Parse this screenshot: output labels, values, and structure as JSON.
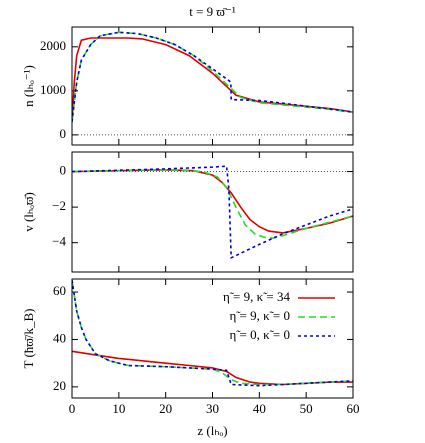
{
  "chart_data": [
    {
      "type": "line",
      "title": "t = 9 ϖ̄⁻¹",
      "ylabel": "n  (lₕₒ⁻¹)",
      "ylim": [
        -230,
        2450
      ],
      "yticks": [
        0,
        1000,
        2000
      ],
      "zero_line": true,
      "series": [
        {
          "color": "#e00000",
          "x": [
            0,
            0.5,
            1,
            2,
            4,
            8,
            12,
            15,
            20,
            25,
            30,
            33,
            35,
            40,
            45,
            50,
            55,
            60
          ],
          "values": [
            300,
            1200,
            1800,
            2150,
            2200,
            2200,
            2200,
            2180,
            2050,
            1800,
            1400,
            1100,
            900,
            750,
            700,
            650,
            600,
            520
          ]
        },
        {
          "color": "#22dd22",
          "dash": "7 4",
          "x": [
            0,
            1,
            2,
            4,
            6,
            10,
            14,
            18,
            22,
            26,
            30,
            33,
            36,
            40,
            45,
            50,
            55,
            60
          ],
          "values": [
            300,
            1200,
            1700,
            2050,
            2250,
            2330,
            2300,
            2200,
            2050,
            1800,
            1450,
            1150,
            850,
            730,
            680,
            630,
            580,
            510
          ]
        },
        {
          "color": "#0000dd",
          "dash": "3 3",
          "x": [
            0,
            1,
            2,
            4,
            6,
            10,
            14,
            18,
            22,
            26,
            30,
            33.9,
            34,
            40,
            45,
            50,
            55,
            60
          ],
          "values": [
            300,
            1200,
            1700,
            2050,
            2250,
            2330,
            2300,
            2200,
            2050,
            1800,
            1500,
            1200,
            800,
            780,
            720,
            650,
            590,
            520
          ]
        }
      ]
    },
    {
      "type": "line",
      "ylabel": "v  (lₕₒϖ̄)",
      "ylim": [
        -5.65,
        1.1
      ],
      "yticks": [
        {
          "value": 0,
          "label": "0"
        },
        {
          "value": -2,
          "label": "−2"
        },
        {
          "value": -4,
          "label": "−4"
        }
      ],
      "zero_line": true,
      "series": [
        {
          "color": "#e00000",
          "x": [
            0,
            10,
            20,
            26,
            30,
            32,
            34,
            36,
            38,
            40,
            42,
            45,
            50,
            55,
            60
          ],
          "values": [
            0,
            0.05,
            0.1,
            0.05,
            -0.2,
            -0.6,
            -1.2,
            -2.0,
            -2.7,
            -3.1,
            -3.35,
            -3.45,
            -3.2,
            -2.9,
            -2.5
          ]
        },
        {
          "color": "#22dd22",
          "dash": "7 4",
          "x": [
            0,
            20,
            28,
            31,
            33,
            35,
            37,
            39,
            41,
            43,
            45,
            50,
            55,
            60,
            60
          ],
          "values": [
            0,
            0.1,
            0,
            -0.3,
            -0.9,
            -2.0,
            -3.0,
            -3.5,
            -3.7,
            -3.75,
            -3.6,
            -3.2,
            -2.85,
            -2.5,
            -2.5
          ]
        },
        {
          "color": "#0000dd",
          "dash": "3 3",
          "x": [
            0,
            20,
            30,
            33,
            33.5,
            34,
            40,
            45,
            50,
            55,
            60
          ],
          "values": [
            0,
            0.15,
            0.25,
            0.3,
            -1,
            -4.85,
            -4.1,
            -3.5,
            -3.0,
            -2.5,
            -2.1
          ]
        }
      ]
    },
    {
      "type": "line",
      "ylabel": "T  (ħϖ̄/k_B)",
      "xlabel": "z  (lₕₒ)",
      "xlim": [
        0,
        60
      ],
      "xticks": [
        0,
        10,
        20,
        30,
        40,
        50,
        60
      ],
      "ylim": [
        15.3,
        65.5
      ],
      "yticks": [
        20,
        40,
        60
      ],
      "legend": "upper right",
      "series": [
        {
          "name": "η̃ = 9, κ̃ = 34",
          "color": "#e00000",
          "x": [
            0,
            5,
            10,
            15,
            20,
            25,
            30,
            33,
            35,
            38,
            40,
            45,
            50,
            55,
            60
          ],
          "values": [
            35,
            33.5,
            32,
            31,
            30,
            29,
            28,
            26.5,
            24,
            22,
            21.5,
            21,
            21.5,
            22,
            22
          ]
        },
        {
          "name": "η̃ = 9, κ̃ = 0",
          "color": "#22dd22",
          "dash": "7 4",
          "x": [
            0,
            1,
            2,
            3,
            5,
            8,
            12,
            20,
            25,
            30,
            32,
            34,
            36,
            40,
            45,
            50,
            55,
            60
          ],
          "values": [
            65,
            52,
            45,
            40,
            34,
            31,
            29,
            28.5,
            28,
            27.5,
            26,
            23,
            21.5,
            21,
            21,
            21.5,
            22,
            22.5
          ]
        },
        {
          "name": "η̃ = 0, κ̃ = 0",
          "color": "#0000dd",
          "dash": "3 3",
          "x": [
            0,
            1,
            2,
            3,
            5,
            8,
            12,
            20,
            25,
            30,
            33,
            34,
            40,
            45,
            50,
            55,
            60
          ],
          "values": [
            65,
            52,
            45,
            40,
            34,
            31,
            29,
            28.5,
            28,
            27.5,
            27,
            21,
            20.5,
            21,
            21.5,
            22,
            22.5
          ]
        }
      ]
    }
  ]
}
